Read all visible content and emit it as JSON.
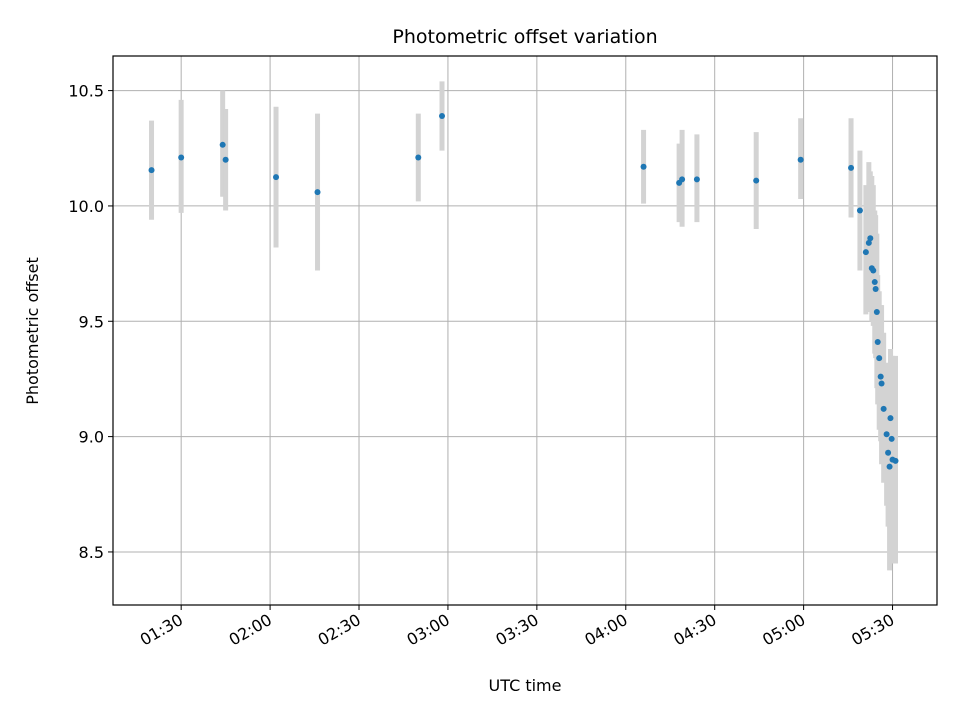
{
  "chart_data": {
    "type": "scatter",
    "title": "Photometric offset variation",
    "xlabel": "UTC time",
    "ylabel": "Photometric offset",
    "x_unit": "HH:MM UTC",
    "xlim": [
      "01:07",
      "05:45"
    ],
    "ylim": [
      8.27,
      10.65
    ],
    "grid": true,
    "x_tick_labels": [
      "01:30",
      "02:00",
      "02:30",
      "03:00",
      "03:30",
      "04:00",
      "04:30",
      "05:00",
      "05:30"
    ],
    "y_tick_labels": [
      "8.5",
      "9.0",
      "9.5",
      "10.0",
      "10.5"
    ],
    "y_ticks": [
      8.5,
      9.0,
      9.5,
      10.0,
      10.5
    ],
    "colors": {
      "points": "#1f77b4",
      "errorbars": "#d3d3d3",
      "grid": "#b0b0b0"
    },
    "points": [
      {
        "t": "01:20",
        "y": 10.155,
        "lo": 9.94,
        "hi": 10.37
      },
      {
        "t": "01:30",
        "y": 10.21,
        "lo": 9.97,
        "hi": 10.46
      },
      {
        "t": "01:44",
        "y": 10.265,
        "lo": 10.04,
        "hi": 10.5
      },
      {
        "t": "01:45",
        "y": 10.2,
        "lo": 9.98,
        "hi": 10.42
      },
      {
        "t": "02:02",
        "y": 10.125,
        "lo": 9.82,
        "hi": 10.43
      },
      {
        "t": "02:16",
        "y": 10.06,
        "lo": 9.72,
        "hi": 10.4
      },
      {
        "t": "02:50",
        "y": 10.21,
        "lo": 10.02,
        "hi": 10.4
      },
      {
        "t": "02:58",
        "y": 10.39,
        "lo": 10.24,
        "hi": 10.54
      },
      {
        "t": "04:06",
        "y": 10.17,
        "lo": 10.01,
        "hi": 10.33
      },
      {
        "t": "04:18",
        "y": 10.1,
        "lo": 9.93,
        "hi": 10.27
      },
      {
        "t": "04:19",
        "y": 10.115,
        "lo": 9.91,
        "hi": 10.33
      },
      {
        "t": "04:24",
        "y": 10.115,
        "lo": 9.93,
        "hi": 10.31
      },
      {
        "t": "04:44",
        "y": 10.11,
        "lo": 9.9,
        "hi": 10.32
      },
      {
        "t": "04:59",
        "y": 10.2,
        "lo": 10.03,
        "hi": 10.38
      },
      {
        "t": "05:16",
        "y": 10.165,
        "lo": 9.95,
        "hi": 10.38
      },
      {
        "t": "05:19",
        "y": 9.98,
        "lo": 9.72,
        "hi": 10.24
      },
      {
        "t": "05:21",
        "y": 9.8,
        "lo": 9.53,
        "hi": 10.09
      },
      {
        "t": "05:22",
        "y": 9.84,
        "lo": 9.54,
        "hi": 10.19
      },
      {
        "t": "05:22.5",
        "y": 9.86,
        "lo": 9.57,
        "hi": 10.15
      },
      {
        "t": "05:23",
        "y": 9.73,
        "lo": 9.5,
        "hi": 10.13
      },
      {
        "t": "05:23.5",
        "y": 9.72,
        "lo": 9.48,
        "hi": 10.09
      },
      {
        "t": "05:24",
        "y": 9.67,
        "lo": 9.36,
        "hi": 9.98
      },
      {
        "t": "05:24.3",
        "y": 9.64,
        "lo": 9.34,
        "hi": 9.96
      },
      {
        "t": "05:24.7",
        "y": 9.54,
        "lo": 9.21,
        "hi": 9.88
      },
      {
        "t": "05:25",
        "y": 9.41,
        "lo": 9.14,
        "hi": 9.7
      },
      {
        "t": "05:25.5",
        "y": 9.34,
        "lo": 9.03,
        "hi": 9.63
      },
      {
        "t": "05:26",
        "y": 9.26,
        "lo": 8.98,
        "hi": 9.57
      },
      {
        "t": "05:26.3",
        "y": 9.23,
        "lo": 8.88,
        "hi": 9.57
      },
      {
        "t": "05:27",
        "y": 9.12,
        "lo": 8.8,
        "hi": 9.45
      },
      {
        "t": "05:28",
        "y": 9.01,
        "lo": 8.7,
        "hi": 9.32
      },
      {
        "t": "05:28.5",
        "y": 8.93,
        "lo": 8.61,
        "hi": 9.28
      },
      {
        "t": "05:29",
        "y": 8.87,
        "lo": 8.42,
        "hi": 9.31
      },
      {
        "t": "05:29.3",
        "y": 9.08,
        "lo": 8.82,
        "hi": 9.38
      },
      {
        "t": "05:29.7",
        "y": 8.99,
        "lo": 8.67,
        "hi": 9.31
      },
      {
        "t": "05:30",
        "y": 8.9,
        "lo": 8.45,
        "hi": 9.35
      },
      {
        "t": "05:31",
        "y": 8.895,
        "lo": 8.45,
        "hi": 9.35
      }
    ]
  }
}
